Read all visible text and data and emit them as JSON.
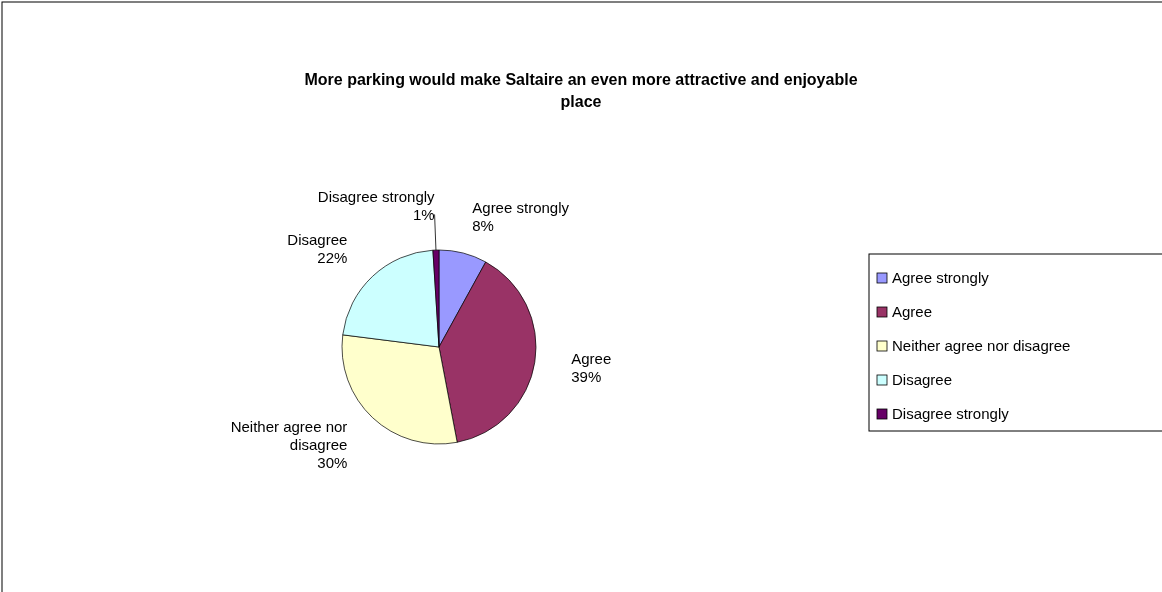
{
  "chart_data": {
    "type": "pie",
    "title": "More parking would make Saltaire an even more attractive and enjoyable place",
    "categories": [
      "Agree strongly",
      "Agree",
      "Neither agree nor disagree",
      "Disagree",
      "Disagree strongly"
    ],
    "values": [
      8,
      39,
      30,
      22,
      1
    ],
    "colors": [
      "#9999ff",
      "#993366",
      "#ffffcc",
      "#ccffff",
      "#660066"
    ],
    "value_labels": [
      "8%",
      "39%",
      "30%",
      "22%",
      "1%"
    ],
    "legend": "right"
  }
}
